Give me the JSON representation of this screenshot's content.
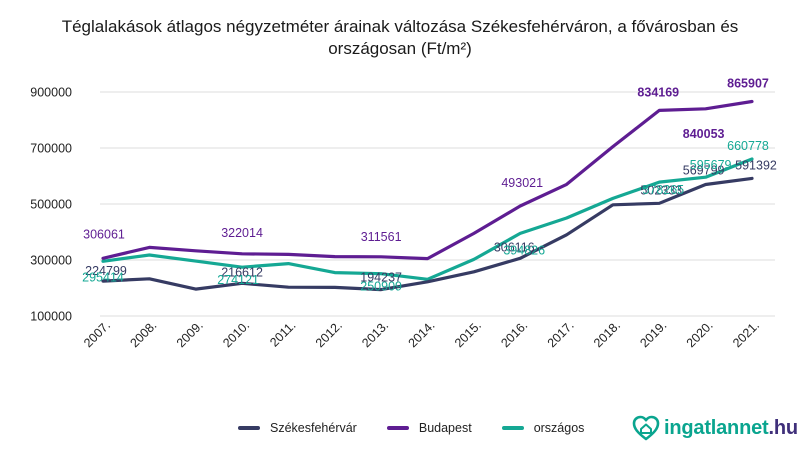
{
  "title_lines": [
    "Téglalakások átlagos négyzetméter árainak változása Székesfehérváron, a fővárosban és",
    "országosan (Ft/m²)"
  ],
  "colors": {
    "szekesfehervar": "#363b63",
    "budapest": "#5e1d92",
    "orszagos": "#15a894",
    "grid": "#dcdcdc"
  },
  "legend": {
    "szekesfehervar": "Székesfehérvár",
    "budapest": "Budapest",
    "orszagos": "országos"
  },
  "logo": {
    "name": "ingatlannet",
    "tld": ".hu",
    "icon": "house-heart-icon"
  },
  "chart_data": {
    "type": "line",
    "title": "Téglalakások átlagos négyzetméter árainak változása Székesfehérváron, a fővárosban és országosan (Ft/m²)",
    "xlabel": "",
    "ylabel": "",
    "ylim": [
      100000,
      900000
    ],
    "yticks": [
      "100000",
      "300000",
      "500000",
      "700000",
      "900000"
    ],
    "categories": [
      "2007.",
      "2008.",
      "2009.",
      "2010.",
      "2011.",
      "2012.",
      "2013.",
      "2014.",
      "2015.",
      "2016.",
      "2017.",
      "2018.",
      "2019.",
      "2020.",
      "2021."
    ],
    "series": [
      {
        "key": "szekesfehervar",
        "name": "Székesfehérvár",
        "values": [
          224799,
          233000,
          196000,
          216612,
          203000,
          202000,
          194237,
          222000,
          258000,
          306116,
          390000,
          497000,
          502333,
          569799,
          591392
        ],
        "labels": [
          {
            "i": 0,
            "text": "224799"
          },
          {
            "i": 3,
            "text": "216612"
          },
          {
            "i": 6,
            "text": "194237"
          },
          {
            "i": 9,
            "text": "306116"
          },
          {
            "i": 12,
            "text": "502333"
          },
          {
            "i": 13,
            "text": "569799"
          },
          {
            "i": 14,
            "text": "591392"
          }
        ]
      },
      {
        "key": "budapest",
        "name": "Budapest",
        "values": [
          306061,
          345000,
          333000,
          322014,
          320000,
          312000,
          311561,
          305000,
          395000,
          493021,
          570000,
          705000,
          834169,
          840053,
          865907
        ],
        "labels": [
          {
            "i": 0,
            "text": "306061"
          },
          {
            "i": 3,
            "text": "322014"
          },
          {
            "i": 6,
            "text": "311561"
          },
          {
            "i": 9,
            "text": "493021"
          },
          {
            "i": 12,
            "text": "834169"
          },
          {
            "i": 13,
            "text": "840053"
          },
          {
            "i": 14,
            "text": "865907"
          }
        ]
      },
      {
        "key": "orszagos",
        "name": "országos",
        "values": [
          295414,
          318000,
          296000,
          274121,
          287000,
          255000,
          250909,
          231000,
          302000,
          394826,
          450000,
          520000,
          578265,
          595679,
          660778
        ],
        "labels": [
          {
            "i": 0,
            "text": "295414"
          },
          {
            "i": 3,
            "text": "274121"
          },
          {
            "i": 6,
            "text": "250909"
          },
          {
            "i": 9,
            "text": "394826"
          },
          {
            "i": 12,
            "text": "578265"
          },
          {
            "i": 13,
            "text": "595679"
          },
          {
            "i": 14,
            "text": "660778"
          }
        ]
      }
    ]
  }
}
